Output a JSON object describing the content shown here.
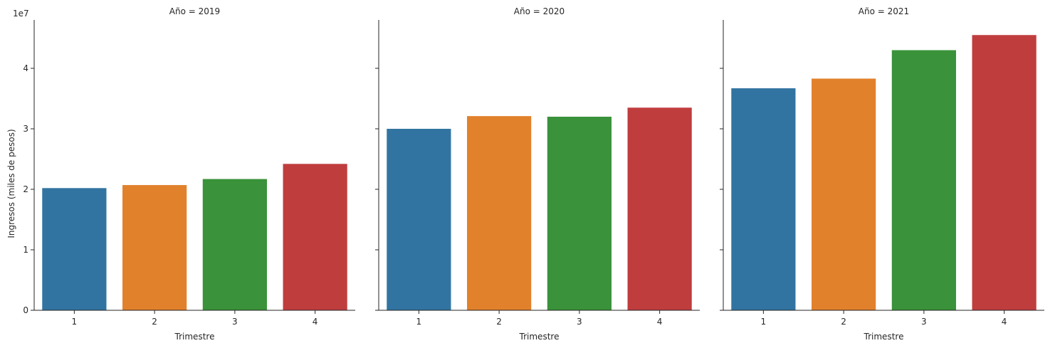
{
  "chart_data": {
    "type": "bar",
    "ylabel": "Ingresos (miles de pesos)",
    "xlabel": "Trimestre",
    "y_offset_label": "1e7",
    "ylim": [
      0,
      48000000
    ],
    "yticks": [
      0,
      10000000,
      20000000,
      30000000,
      40000000
    ],
    "ytick_labels": [
      "0",
      "1",
      "2",
      "3",
      "4"
    ],
    "categories": [
      "1",
      "2",
      "3",
      "4"
    ],
    "colors": [
      "#3274a1",
      "#e1812c",
      "#3a923a",
      "#c03d3e"
    ],
    "grid": false,
    "panels": [
      {
        "title": "Año = 2019",
        "values": [
          20200000,
          20700000,
          21700000,
          24200000
        ]
      },
      {
        "title": "Año = 2020",
        "values": [
          30000000,
          32100000,
          32000000,
          33500000
        ]
      },
      {
        "title": "Año = 2021",
        "values": [
          36700000,
          38300000,
          43000000,
          45500000
        ]
      }
    ]
  }
}
